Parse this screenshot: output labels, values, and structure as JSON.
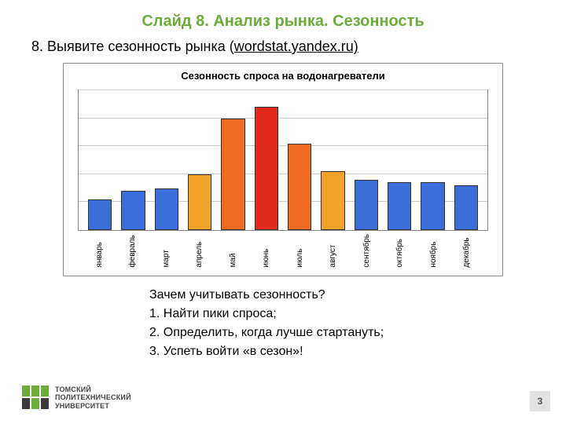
{
  "title": {
    "text": "Слайд 8. Анализ рынка. Сезонность",
    "color": "#6bac3a"
  },
  "subtitle": {
    "prefix": "8. Выявите сезонность рынка (",
    "link": "wordstat.yandex.ru)",
    "color": "#000000"
  },
  "chart": {
    "type": "bar",
    "title": "Сезонность спроса на водонагреватели",
    "title_fontsize": 13,
    "background_color": "#ffffff",
    "border_color": "#888888",
    "grid_color": "#cccccc",
    "ylim": [
      0,
      100
    ],
    "gridlines": [
      20,
      40,
      60,
      80,
      100
    ],
    "bar_width": 0.72,
    "categories": [
      "январь",
      "февраль",
      "март",
      "апрель",
      "май",
      "июнь",
      "июль",
      "август",
      "сентябрь",
      "октябрь",
      "ноябрь",
      "декабрь"
    ],
    "values": [
      22,
      28,
      30,
      40,
      80,
      88,
      62,
      42,
      36,
      34,
      34,
      32
    ],
    "bar_colors": [
      "#3b6dd8",
      "#3b6dd8",
      "#3b6dd8",
      "#f0a22b",
      "#ee6b1f",
      "#e1291c",
      "#ee6b1f",
      "#f0a22b",
      "#3b6dd8",
      "#3b6dd8",
      "#3b6dd8",
      "#3b6dd8"
    ],
    "label_fontsize": 10,
    "bar_border_color": "#333333"
  },
  "body": {
    "q": "Зачем учитывать сезонность?",
    "l1": "1. Найти пики спроса;",
    "l2": "2. Определить, когда лучше стартануть;",
    "l3": "3. Успеть войти «в сезон»!",
    "fontsize": 16
  },
  "footer": {
    "org_line1": "ТОМСКИЙ",
    "org_line2": "ПОЛИТЕХНИЧЕСКИЙ",
    "org_line3": "УНИВЕРСИТЕТ",
    "logo_green": "#6bac3a",
    "logo_dark": "#3a3a3a"
  },
  "page_number": "3"
}
